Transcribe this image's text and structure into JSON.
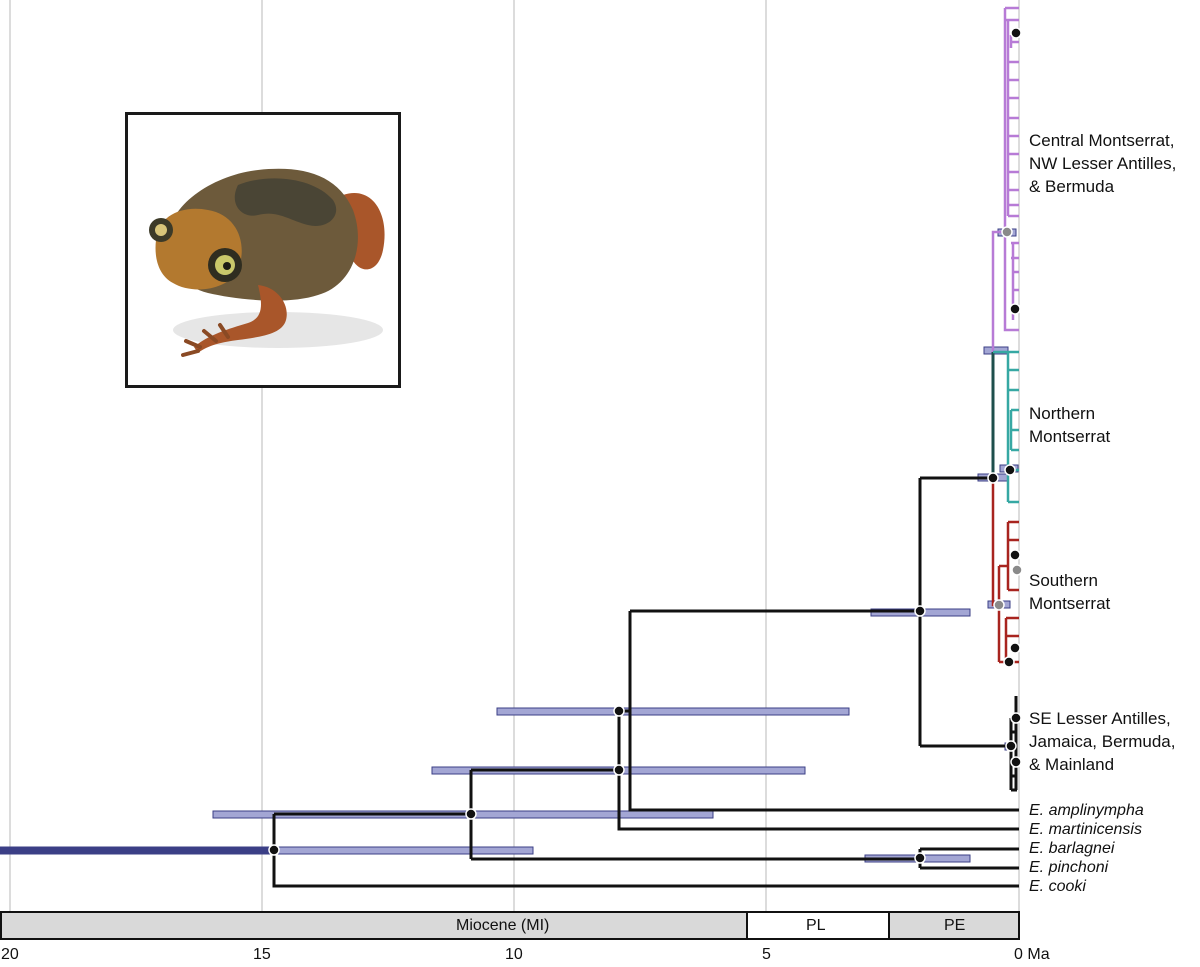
{
  "clades": [
    {
      "lines": [
        "Central Montserrat,",
        "NW Lesser Antilles,",
        "& Bermuda"
      ],
      "color": "#b77bd6"
    },
    {
      "lines": [
        "Northern",
        "Montserrat"
      ],
      "color": "#36a8a3"
    },
    {
      "lines": [
        "Southern",
        "Montserrat"
      ],
      "color": "#a8241f"
    },
    {
      "lines": [
        "SE Lesser Antilles,",
        "Jamaica, Bermuda,",
        "& Mainland"
      ],
      "color": "#111111"
    }
  ],
  "taxa": [
    {
      "genus": "E.",
      "species": "amplinympha"
    },
    {
      "genus": "E.",
      "species": "martinicensis"
    },
    {
      "genus": "E.",
      "species": "barlagnei"
    },
    {
      "genus": "E.",
      "species": "pinchoni"
    },
    {
      "genus": "E.",
      "species": "cooki"
    }
  ],
  "axis": {
    "ticks": [
      "20",
      "15",
      "10",
      "5",
      "0"
    ],
    "unit": "Ma"
  },
  "epochs": [
    {
      "label": "Miocene (MI)",
      "fill": "#d9d9d9"
    },
    {
      "label": "PL",
      "fill": "#ffffff"
    },
    {
      "label": "PE",
      "fill": "#d9d9d9"
    }
  ],
  "colors": {
    "branch": "#111111",
    "hpd_bar": "#a3a6d4",
    "hpd_bar_dark": "#3b3f86",
    "gridline": "#b9b9b9"
  },
  "photo": {
    "subject": "frog-photo"
  }
}
